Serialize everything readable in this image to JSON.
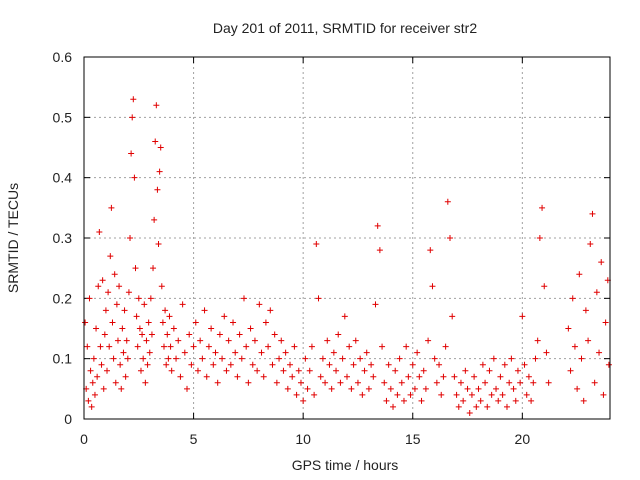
{
  "chart_data": {
    "type": "scatter",
    "title": "Day 201 of 2011, SRMTID for receiver str2",
    "xlabel": "GPS time / hours",
    "ylabel": "SRMTID / TECUs",
    "xlim": [
      0,
      24
    ],
    "ylim": [
      0,
      0.6
    ],
    "xticks": [
      0,
      5,
      10,
      15,
      20
    ],
    "yticks": [
      0,
      0.1,
      0.2,
      0.3,
      0.4,
      0.5,
      0.6
    ],
    "ytick_labels": [
      "0",
      "0.1",
      "0.2",
      "0.3",
      "0.4",
      "0.5",
      "0.6"
    ],
    "grid": true,
    "marker": "+",
    "series_color": "#e00000",
    "series": [
      {
        "name": "SRMTID",
        "points": [
          [
            0.05,
            0.16
          ],
          [
            0.1,
            0.05
          ],
          [
            0.15,
            0.12
          ],
          [
            0.2,
            0.03
          ],
          [
            0.25,
            0.2
          ],
          [
            0.3,
            0.08
          ],
          [
            0.35,
            0.02
          ],
          [
            0.4,
            0.06
          ],
          [
            0.45,
            0.1
          ],
          [
            0.5,
            0.04
          ],
          [
            0.55,
            0.15
          ],
          [
            0.6,
            0.07
          ],
          [
            0.65,
            0.22
          ],
          [
            0.7,
            0.31
          ],
          [
            0.75,
            0.12
          ],
          [
            0.8,
            0.09
          ],
          [
            0.85,
            0.23
          ],
          [
            0.9,
            0.05
          ],
          [
            0.95,
            0.14
          ],
          [
            1.0,
            0.18
          ],
          [
            1.05,
            0.08
          ],
          [
            1.1,
            0.21
          ],
          [
            1.15,
            0.12
          ],
          [
            1.2,
            0.27
          ],
          [
            1.25,
            0.35
          ],
          [
            1.3,
            0.16
          ],
          [
            1.35,
            0.1
          ],
          [
            1.4,
            0.24
          ],
          [
            1.45,
            0.06
          ],
          [
            1.5,
            0.19
          ],
          [
            1.55,
            0.13
          ],
          [
            1.6,
            0.22
          ],
          [
            1.65,
            0.09
          ],
          [
            1.7,
            0.05
          ],
          [
            1.75,
            0.15
          ],
          [
            1.8,
            0.11
          ],
          [
            1.85,
            0.18
          ],
          [
            1.9,
            0.07
          ],
          [
            1.95,
            0.13
          ],
          [
            2.0,
            0.1
          ],
          [
            2.05,
            0.21
          ],
          [
            2.1,
            0.3
          ],
          [
            2.15,
            0.44
          ],
          [
            2.2,
            0.5
          ],
          [
            2.25,
            0.53
          ],
          [
            2.3,
            0.4
          ],
          [
            2.35,
            0.25
          ],
          [
            2.4,
            0.17
          ],
          [
            2.45,
            0.12
          ],
          [
            2.5,
            0.2
          ],
          [
            2.55,
            0.15
          ],
          [
            2.6,
            0.08
          ],
          [
            2.65,
            0.14
          ],
          [
            2.7,
            0.1
          ],
          [
            2.75,
            0.19
          ],
          [
            2.8,
            0.06
          ],
          [
            2.85,
            0.13
          ],
          [
            2.9,
            0.09
          ],
          [
            2.95,
            0.16
          ],
          [
            3.0,
            0.11
          ],
          [
            3.05,
            0.2
          ],
          [
            3.1,
            0.14
          ],
          [
            3.15,
            0.25
          ],
          [
            3.2,
            0.33
          ],
          [
            3.25,
            0.46
          ],
          [
            3.3,
            0.52
          ],
          [
            3.35,
            0.38
          ],
          [
            3.4,
            0.29
          ],
          [
            3.45,
            0.41
          ],
          [
            3.5,
            0.45
          ],
          [
            3.55,
            0.22
          ],
          [
            3.6,
            0.16
          ],
          [
            3.65,
            0.12
          ],
          [
            3.7,
            0.18
          ],
          [
            3.75,
            0.09
          ],
          [
            3.8,
            0.14
          ],
          [
            3.85,
            0.1
          ],
          [
            3.9,
            0.17
          ],
          [
            3.95,
            0.12
          ],
          [
            4.0,
            0.08
          ],
          [
            4.1,
            0.15
          ],
          [
            4.2,
            0.1
          ],
          [
            4.3,
            0.13
          ],
          [
            4.4,
            0.07
          ],
          [
            4.5,
            0.19
          ],
          [
            4.6,
            0.11
          ],
          [
            4.7,
            0.05
          ],
          [
            4.8,
            0.14
          ],
          [
            4.9,
            0.09
          ],
          [
            5.0,
            0.12
          ],
          [
            5.1,
            0.16
          ],
          [
            5.2,
            0.08
          ],
          [
            5.3,
            0.13
          ],
          [
            5.4,
            0.1
          ],
          [
            5.5,
            0.18
          ],
          [
            5.6,
            0.07
          ],
          [
            5.7,
            0.12
          ],
          [
            5.8,
            0.15
          ],
          [
            5.9,
            0.09
          ],
          [
            6.0,
            0.11
          ],
          [
            6.1,
            0.06
          ],
          [
            6.2,
            0.14
          ],
          [
            6.3,
            0.1
          ],
          [
            6.4,
            0.17
          ],
          [
            6.5,
            0.08
          ],
          [
            6.6,
            0.13
          ],
          [
            6.7,
            0.09
          ],
          [
            6.8,
            0.16
          ],
          [
            6.9,
            0.11
          ],
          [
            7.0,
            0.07
          ],
          [
            7.1,
            0.14
          ],
          [
            7.2,
            0.1
          ],
          [
            7.3,
            0.2
          ],
          [
            7.4,
            0.12
          ],
          [
            7.5,
            0.06
          ],
          [
            7.6,
            0.15
          ],
          [
            7.7,
            0.09
          ],
          [
            7.8,
            0.13
          ],
          [
            7.9,
            0.08
          ],
          [
            8.0,
            0.19
          ],
          [
            8.1,
            0.11
          ],
          [
            8.2,
            0.07
          ],
          [
            8.3,
            0.16
          ],
          [
            8.4,
            0.12
          ],
          [
            8.5,
            0.18
          ],
          [
            8.6,
            0.09
          ],
          [
            8.7,
            0.14
          ],
          [
            8.8,
            0.06
          ],
          [
            8.9,
            0.1
          ],
          [
            9.0,
            0.13
          ],
          [
            9.1,
            0.08
          ],
          [
            9.2,
            0.11
          ],
          [
            9.3,
            0.05
          ],
          [
            9.4,
            0.09
          ],
          [
            9.5,
            0.07
          ],
          [
            9.6,
            0.12
          ],
          [
            9.7,
            0.04
          ],
          [
            9.8,
            0.08
          ],
          [
            9.9,
            0.06
          ],
          [
            10.0,
            0.03
          ],
          [
            10.1,
            0.1
          ],
          [
            10.2,
            0.05
          ],
          [
            10.3,
            0.08
          ],
          [
            10.4,
            0.12
          ],
          [
            10.5,
            0.04
          ],
          [
            10.6,
            0.29
          ],
          [
            10.7,
            0.2
          ],
          [
            10.8,
            0.07
          ],
          [
            10.9,
            0.1
          ],
          [
            11.0,
            0.06
          ],
          [
            11.1,
            0.13
          ],
          [
            11.2,
            0.09
          ],
          [
            11.3,
            0.05
          ],
          [
            11.4,
            0.11
          ],
          [
            11.5,
            0.08
          ],
          [
            11.6,
            0.14
          ],
          [
            11.7,
            0.06
          ],
          [
            11.8,
            0.1
          ],
          [
            11.9,
            0.17
          ],
          [
            12.0,
            0.07
          ],
          [
            12.1,
            0.12
          ],
          [
            12.2,
            0.05
          ],
          [
            12.3,
            0.09
          ],
          [
            12.4,
            0.13
          ],
          [
            12.5,
            0.06
          ],
          [
            12.6,
            0.1
          ],
          [
            12.7,
            0.04
          ],
          [
            12.8,
            0.08
          ],
          [
            12.9,
            0.11
          ],
          [
            13.0,
            0.05
          ],
          [
            13.1,
            0.09
          ],
          [
            13.2,
            0.07
          ],
          [
            13.3,
            0.19
          ],
          [
            13.4,
            0.32
          ],
          [
            13.5,
            0.28
          ],
          [
            13.6,
            0.12
          ],
          [
            13.7,
            0.06
          ],
          [
            13.8,
            0.03
          ],
          [
            13.9,
            0.09
          ],
          [
            14.0,
            0.05
          ],
          [
            14.1,
            0.02
          ],
          [
            14.2,
            0.08
          ],
          [
            14.3,
            0.04
          ],
          [
            14.4,
            0.1
          ],
          [
            14.5,
            0.06
          ],
          [
            14.6,
            0.03
          ],
          [
            14.7,
            0.12
          ],
          [
            14.8,
            0.07
          ],
          [
            14.9,
            0.04
          ],
          [
            15.0,
            0.09
          ],
          [
            15.1,
            0.05
          ],
          [
            15.2,
            0.11
          ],
          [
            15.3,
            0.07
          ],
          [
            15.4,
            0.03
          ],
          [
            15.5,
            0.08
          ],
          [
            15.6,
            0.05
          ],
          [
            15.7,
            0.13
          ],
          [
            15.8,
            0.28
          ],
          [
            15.9,
            0.22
          ],
          [
            16.0,
            0.1
          ],
          [
            16.1,
            0.06
          ],
          [
            16.2,
            0.09
          ],
          [
            16.3,
            0.04
          ],
          [
            16.4,
            0.07
          ],
          [
            16.5,
            0.12
          ],
          [
            16.6,
            0.36
          ],
          [
            16.7,
            0.3
          ],
          [
            16.8,
            0.17
          ],
          [
            16.9,
            0.07
          ],
          [
            17.0,
            0.04
          ],
          [
            17.1,
            0.02
          ],
          [
            17.2,
            0.06
          ],
          [
            17.3,
            0.03
          ],
          [
            17.4,
            0.08
          ],
          [
            17.5,
            0.05
          ],
          [
            17.6,
            0.01
          ],
          [
            17.7,
            0.04
          ],
          [
            17.8,
            0.07
          ],
          [
            17.9,
            0.02
          ],
          [
            18.0,
            0.05
          ],
          [
            18.1,
            0.03
          ],
          [
            18.2,
            0.09
          ],
          [
            18.3,
            0.06
          ],
          [
            18.4,
            0.02
          ],
          [
            18.5,
            0.08
          ],
          [
            18.6,
            0.04
          ],
          [
            18.7,
            0.1
          ],
          [
            18.8,
            0.05
          ],
          [
            18.9,
            0.03
          ],
          [
            19.0,
            0.07
          ],
          [
            19.1,
            0.04
          ],
          [
            19.2,
            0.09
          ],
          [
            19.3,
            0.02
          ],
          [
            19.4,
            0.06
          ],
          [
            19.5,
            0.1
          ],
          [
            19.6,
            0.05
          ],
          [
            19.7,
            0.03
          ],
          [
            19.8,
            0.08
          ],
          [
            19.9,
            0.06
          ],
          [
            20.0,
            0.17
          ],
          [
            20.1,
            0.09
          ],
          [
            20.2,
            0.04
          ],
          [
            20.3,
            0.07
          ],
          [
            20.4,
            0.03
          ],
          [
            20.5,
            0.06
          ],
          [
            20.6,
            0.1
          ],
          [
            20.7,
            0.13
          ],
          [
            20.8,
            0.3
          ],
          [
            20.9,
            0.35
          ],
          [
            21.0,
            0.22
          ],
          [
            21.1,
            0.11
          ],
          [
            21.2,
            0.06
          ],
          [
            22.1,
            0.15
          ],
          [
            22.2,
            0.08
          ],
          [
            22.3,
            0.2
          ],
          [
            22.4,
            0.12
          ],
          [
            22.5,
            0.05
          ],
          [
            22.6,
            0.24
          ],
          [
            22.7,
            0.1
          ],
          [
            22.8,
            0.03
          ],
          [
            22.9,
            0.18
          ],
          [
            23.0,
            0.13
          ],
          [
            23.1,
            0.29
          ],
          [
            23.2,
            0.34
          ],
          [
            23.3,
            0.06
          ],
          [
            23.4,
            0.21
          ],
          [
            23.5,
            0.11
          ],
          [
            23.6,
            0.26
          ],
          [
            23.7,
            0.04
          ],
          [
            23.8,
            0.16
          ],
          [
            23.9,
            0.23
          ],
          [
            23.95,
            0.09
          ]
        ]
      }
    ]
  }
}
